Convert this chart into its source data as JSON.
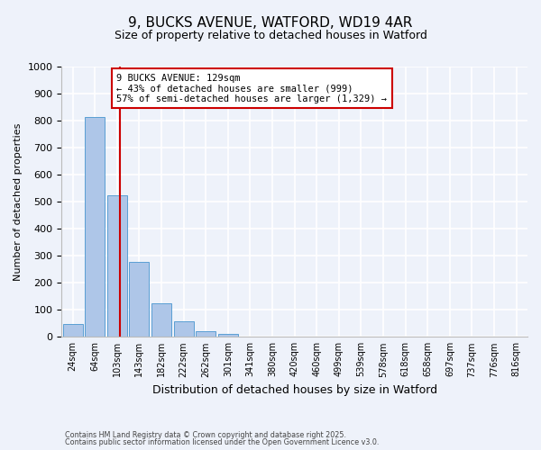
{
  "title_line1": "9, BUCKS AVENUE, WATFORD, WD19 4AR",
  "title_line2": "Size of property relative to detached houses in Watford",
  "xlabel": "Distribution of detached houses by size in Watford",
  "ylabel": "Number of detached properties",
  "bar_values": [
    46,
    815,
    525,
    278,
    125,
    57,
    22,
    11,
    0,
    0,
    0,
    0,
    0,
    0,
    0,
    0,
    0,
    0,
    0,
    0,
    0
  ],
  "bar_labels": [
    "24sqm",
    "64sqm",
    "103sqm",
    "143sqm",
    "182sqm",
    "222sqm",
    "262sqm",
    "301sqm",
    "341sqm",
    "380sqm",
    "420sqm",
    "460sqm",
    "499sqm",
    "539sqm",
    "578sqm",
    "618sqm",
    "658sqm",
    "697sqm",
    "737sqm",
    "776sqm",
    "816sqm"
  ],
  "ylim": [
    0,
    1000
  ],
  "yticks": [
    0,
    100,
    200,
    300,
    400,
    500,
    600,
    700,
    800,
    900,
    1000
  ],
  "bar_color": "#aec6e8",
  "bar_edge_color": "#5a9fd4",
  "property_line_color": "#cc0000",
  "annotation_title": "9 BUCKS AVENUE: 129sqm",
  "annotation_line1": "← 43% of detached houses are smaller (999)",
  "annotation_line2": "57% of semi-detached houses are larger (1,329) →",
  "annotation_box_color": "#cc0000",
  "footer_line1": "Contains HM Land Registry data © Crown copyright and database right 2025.",
  "footer_line2": "Contains public sector information licensed under the Open Government Licence v3.0.",
  "background_color": "#eef2fa",
  "grid_color": "#ffffff"
}
